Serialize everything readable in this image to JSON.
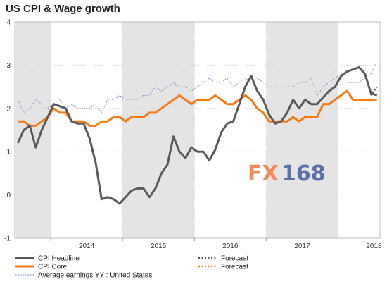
{
  "chart_data": {
    "type": "line",
    "title": "US CPI & Wage growth",
    "ylim": [
      -1,
      4
    ],
    "y_ticks": [
      4,
      3,
      2,
      1,
      0,
      -1
    ],
    "x_year_labels": [
      "2014",
      "2015",
      "2016",
      "2017",
      "2018"
    ],
    "x_range": [
      "2013-07",
      "2018-07"
    ],
    "shaded_years": [
      "2013",
      "2015",
      "2017"
    ],
    "grid": true,
    "legend_position": "bottom",
    "watermark": "FX168",
    "colors": {
      "cpi_headline": "#595959",
      "cpi_core": "#f47a13",
      "avg_earnings": "#5b84c8",
      "shade": "#e4e4e4",
      "watermark_fx": "#f48a5c",
      "watermark_num": "#5b6fa8"
    },
    "series": [
      {
        "name": "CPI Headline",
        "key": "cpi_headline",
        "style": "solid-thick",
        "x": [
          "2013-07",
          "2013-08",
          "2013-09",
          "2013-10",
          "2013-11",
          "2013-12",
          "2014-01",
          "2014-02",
          "2014-03",
          "2014-04",
          "2014-05",
          "2014-06",
          "2014-07",
          "2014-08",
          "2014-09",
          "2014-10",
          "2014-11",
          "2014-12",
          "2015-01",
          "2015-02",
          "2015-03",
          "2015-04",
          "2015-05",
          "2015-06",
          "2015-07",
          "2015-08",
          "2015-09",
          "2015-10",
          "2015-11",
          "2015-12",
          "2016-01",
          "2016-02",
          "2016-03",
          "2016-04",
          "2016-05",
          "2016-06",
          "2016-07",
          "2016-08",
          "2016-09",
          "2016-10",
          "2016-11",
          "2016-12",
          "2017-01",
          "2017-02",
          "2017-03",
          "2017-04",
          "2017-05",
          "2017-06",
          "2017-07",
          "2017-08",
          "2017-09",
          "2017-10",
          "2017-11",
          "2017-12",
          "2018-01",
          "2018-02",
          "2018-03",
          "2018-04",
          "2018-05",
          "2018-06",
          "2018-07"
        ],
        "values": [
          1.2,
          1.5,
          1.6,
          1.1,
          1.5,
          1.8,
          2.1,
          2.05,
          2.0,
          1.7,
          1.65,
          1.65,
          1.3,
          0.75,
          -0.1,
          -0.05,
          -0.1,
          -0.2,
          -0.05,
          0.1,
          0.15,
          0.15,
          -0.05,
          0.15,
          0.5,
          0.7,
          1.35,
          1.0,
          0.85,
          1.1,
          1.0,
          1.0,
          0.8,
          1.05,
          1.45,
          1.65,
          1.7,
          2.1,
          2.5,
          2.75,
          2.4,
          2.2,
          1.85,
          1.65,
          1.7,
          1.9,
          2.2,
          2.0,
          2.2,
          2.1,
          2.1,
          2.25,
          2.4,
          2.5,
          2.75,
          2.85,
          2.9,
          2.95,
          2.8,
          2.35,
          2.3
        ]
      },
      {
        "name": "CPI Core",
        "key": "cpi_core",
        "style": "solid-thick",
        "x": [
          "2013-07",
          "2013-08",
          "2013-09",
          "2013-10",
          "2013-11",
          "2013-12",
          "2014-01",
          "2014-02",
          "2014-03",
          "2014-04",
          "2014-05",
          "2014-06",
          "2014-07",
          "2014-08",
          "2014-09",
          "2014-10",
          "2014-11",
          "2014-12",
          "2015-01",
          "2015-02",
          "2015-03",
          "2015-04",
          "2015-05",
          "2015-06",
          "2015-07",
          "2015-08",
          "2015-09",
          "2015-10",
          "2015-11",
          "2015-12",
          "2016-01",
          "2016-02",
          "2016-03",
          "2016-04",
          "2016-05",
          "2016-06",
          "2016-07",
          "2016-08",
          "2016-09",
          "2016-10",
          "2016-11",
          "2016-12",
          "2017-01",
          "2017-02",
          "2017-03",
          "2017-04",
          "2017-05",
          "2017-06",
          "2017-07",
          "2017-08",
          "2017-09",
          "2017-10",
          "2017-11",
          "2017-12",
          "2018-01",
          "2018-02",
          "2018-03",
          "2018-04",
          "2018-05",
          "2018-06",
          "2018-07"
        ],
        "values": [
          1.7,
          1.7,
          1.6,
          1.6,
          1.7,
          1.8,
          2.0,
          1.9,
          1.9,
          1.7,
          1.7,
          1.7,
          1.6,
          1.6,
          1.7,
          1.7,
          1.8,
          1.8,
          1.7,
          1.8,
          1.8,
          1.8,
          1.9,
          1.9,
          2.0,
          2.1,
          2.2,
          2.3,
          2.2,
          2.1,
          2.2,
          2.2,
          2.2,
          2.3,
          2.2,
          2.1,
          2.1,
          2.2,
          2.3,
          2.2,
          2.0,
          1.9,
          1.7,
          1.7,
          1.7,
          1.7,
          1.8,
          1.7,
          1.8,
          1.8,
          1.8,
          2.1,
          2.1,
          2.2,
          2.3,
          2.4,
          2.2,
          2.2,
          2.2,
          2.2,
          2.2
        ]
      },
      {
        "name": "Average earnings YY : United States",
        "key": "avg_earnings",
        "style": "dotted-thin",
        "x": [
          "2013-07",
          "2013-08",
          "2013-09",
          "2013-10",
          "2013-11",
          "2013-12",
          "2014-01",
          "2014-02",
          "2014-03",
          "2014-04",
          "2014-05",
          "2014-06",
          "2014-07",
          "2014-08",
          "2014-09",
          "2014-10",
          "2014-11",
          "2014-12",
          "2015-01",
          "2015-02",
          "2015-03",
          "2015-04",
          "2015-05",
          "2015-06",
          "2015-07",
          "2015-08",
          "2015-09",
          "2015-10",
          "2015-11",
          "2015-12",
          "2016-01",
          "2016-02",
          "2016-03",
          "2016-04",
          "2016-05",
          "2016-06",
          "2016-07",
          "2016-08",
          "2016-09",
          "2016-10",
          "2016-11",
          "2016-12",
          "2017-01",
          "2017-02",
          "2017-03",
          "2017-04",
          "2017-05",
          "2017-06",
          "2017-07",
          "2017-08",
          "2017-09",
          "2017-10",
          "2017-11",
          "2017-12",
          "2018-01",
          "2018-02",
          "2018-03",
          "2018-04",
          "2018-05",
          "2018-06",
          "2018-07"
        ],
        "values": [
          2.2,
          1.9,
          2.0,
          2.2,
          2.1,
          2.0,
          2.1,
          2.2,
          2.0,
          2.1,
          2.0,
          2.0,
          2.0,
          2.1,
          1.9,
          2.2,
          2.2,
          2.3,
          2.2,
          2.2,
          2.2,
          2.3,
          2.3,
          2.5,
          2.4,
          2.5,
          2.6,
          2.5,
          2.5,
          2.4,
          2.5,
          2.6,
          2.7,
          2.6,
          2.6,
          2.7,
          2.5,
          2.6,
          2.7,
          2.6,
          2.7,
          2.6,
          2.5,
          2.5,
          2.5,
          2.5,
          2.5,
          2.6,
          2.6,
          2.7,
          2.3,
          2.5,
          2.6,
          2.7,
          2.8,
          2.6,
          2.6,
          2.6,
          2.7,
          2.8,
          3.1
        ]
      },
      {
        "name": "Forecast",
        "key": "cpi_headline_forecast",
        "style": "dotted-thick-gray",
        "x": [
          "2018-06",
          "2018-07"
        ],
        "values": [
          2.3,
          2.5
        ]
      },
      {
        "name": "Forecast",
        "key": "cpi_core_forecast",
        "style": "dotted-thick-orange",
        "x": [
          "2018-06",
          "2018-07"
        ],
        "values": [
          2.2,
          2.2
        ]
      }
    ]
  }
}
